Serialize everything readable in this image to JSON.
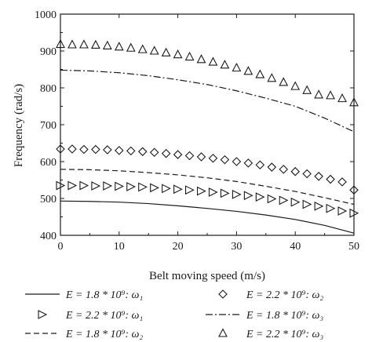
{
  "chart_data": {
    "type": "line",
    "title": "",
    "xlabel": "Belt moving speed (m/s)",
    "ylabel": "Frequency (rad/s)",
    "xlim": [
      0,
      50
    ],
    "ylim": [
      400,
      1000
    ],
    "xticks": [
      0,
      10,
      20,
      30,
      40,
      50
    ],
    "yticks": [
      400,
      500,
      600,
      700,
      800,
      900,
      1000
    ],
    "grid": false,
    "legend_position": "bottom",
    "series": [
      {
        "name": "E = 1.8 * 10^9: ω1",
        "legend_label": "E = 1.8 * 10⁹: ω₁",
        "line": "solid",
        "marker": "none",
        "x": [
          0,
          5,
          10,
          15,
          20,
          25,
          30,
          35,
          40,
          45,
          50
        ],
        "y": [
          493,
          492,
          490,
          486,
          480,
          473,
          465,
          455,
          443,
          427,
          406
        ]
      },
      {
        "name": "E = 2.2 * 10^9: ω1",
        "legend_label": "E = 2.2 * 10⁹: ω₁",
        "line": "none",
        "marker": "triangle-right",
        "x": [
          0,
          2,
          4,
          6,
          8,
          10,
          12,
          14,
          16,
          18,
          20,
          22,
          24,
          26,
          28,
          30,
          32,
          34,
          36,
          38,
          40,
          42,
          44,
          46,
          48,
          50
        ],
        "y": [
          535,
          535,
          535,
          534,
          534,
          533,
          532,
          531,
          529,
          527,
          525,
          523,
          520,
          517,
          514,
          511,
          508,
          504,
          499,
          495,
          490,
          484,
          479,
          473,
          466,
          460
        ]
      },
      {
        "name": "E = 1.8 * 10^9: ω2",
        "legend_label": "E = 1.8 * 10⁹: ω₂",
        "line": "dashed",
        "marker": "none",
        "x": [
          0,
          5,
          10,
          15,
          20,
          25,
          30,
          35,
          40,
          45,
          50
        ],
        "y": [
          579,
          578,
          575,
          570,
          564,
          556,
          546,
          533,
          519,
          502,
          484
        ]
      },
      {
        "name": "E = 2.2 * 10^9: ω2",
        "legend_label": "E = 2.2 * 10⁹: ω₂",
        "line": "none",
        "marker": "diamond",
        "x": [
          0,
          2,
          4,
          6,
          8,
          10,
          12,
          14,
          16,
          18,
          20,
          22,
          24,
          26,
          28,
          30,
          32,
          34,
          36,
          38,
          40,
          42,
          44,
          46,
          48,
          50
        ],
        "y": [
          634,
          634,
          633,
          633,
          632,
          630,
          629,
          627,
          625,
          622,
          619,
          616,
          613,
          609,
          605,
          600,
          596,
          591,
          585,
          579,
          573,
          567,
          560,
          552,
          545,
          523
        ]
      },
      {
        "name": "E = 1.8 * 10^9: ω3",
        "legend_label": "E = 1.8 * 10⁹: ω₃",
        "line": "dash-dot",
        "marker": "none",
        "x": [
          0,
          5,
          10,
          15,
          20,
          25,
          30,
          35,
          40,
          45,
          50
        ],
        "y": [
          848,
          846,
          841,
          833,
          822,
          809,
          792,
          772,
          750,
          718,
          681
        ]
      },
      {
        "name": "E = 2.2 * 10^9: ω3",
        "legend_label": "E = 2.2 * 10⁹: ω₃",
        "line": "none",
        "marker": "triangle-up",
        "x": [
          0,
          2,
          4,
          6,
          8,
          10,
          12,
          14,
          16,
          18,
          20,
          22,
          24,
          26,
          28,
          30,
          32,
          34,
          36,
          38,
          40,
          42,
          44,
          46,
          48,
          50
        ],
        "y": [
          918,
          917,
          917,
          916,
          914,
          911,
          908,
          904,
          900,
          895,
          890,
          884,
          877,
          870,
          862,
          854,
          845,
          836,
          826,
          815,
          804,
          793,
          781,
          779,
          771,
          760
        ]
      }
    ]
  }
}
